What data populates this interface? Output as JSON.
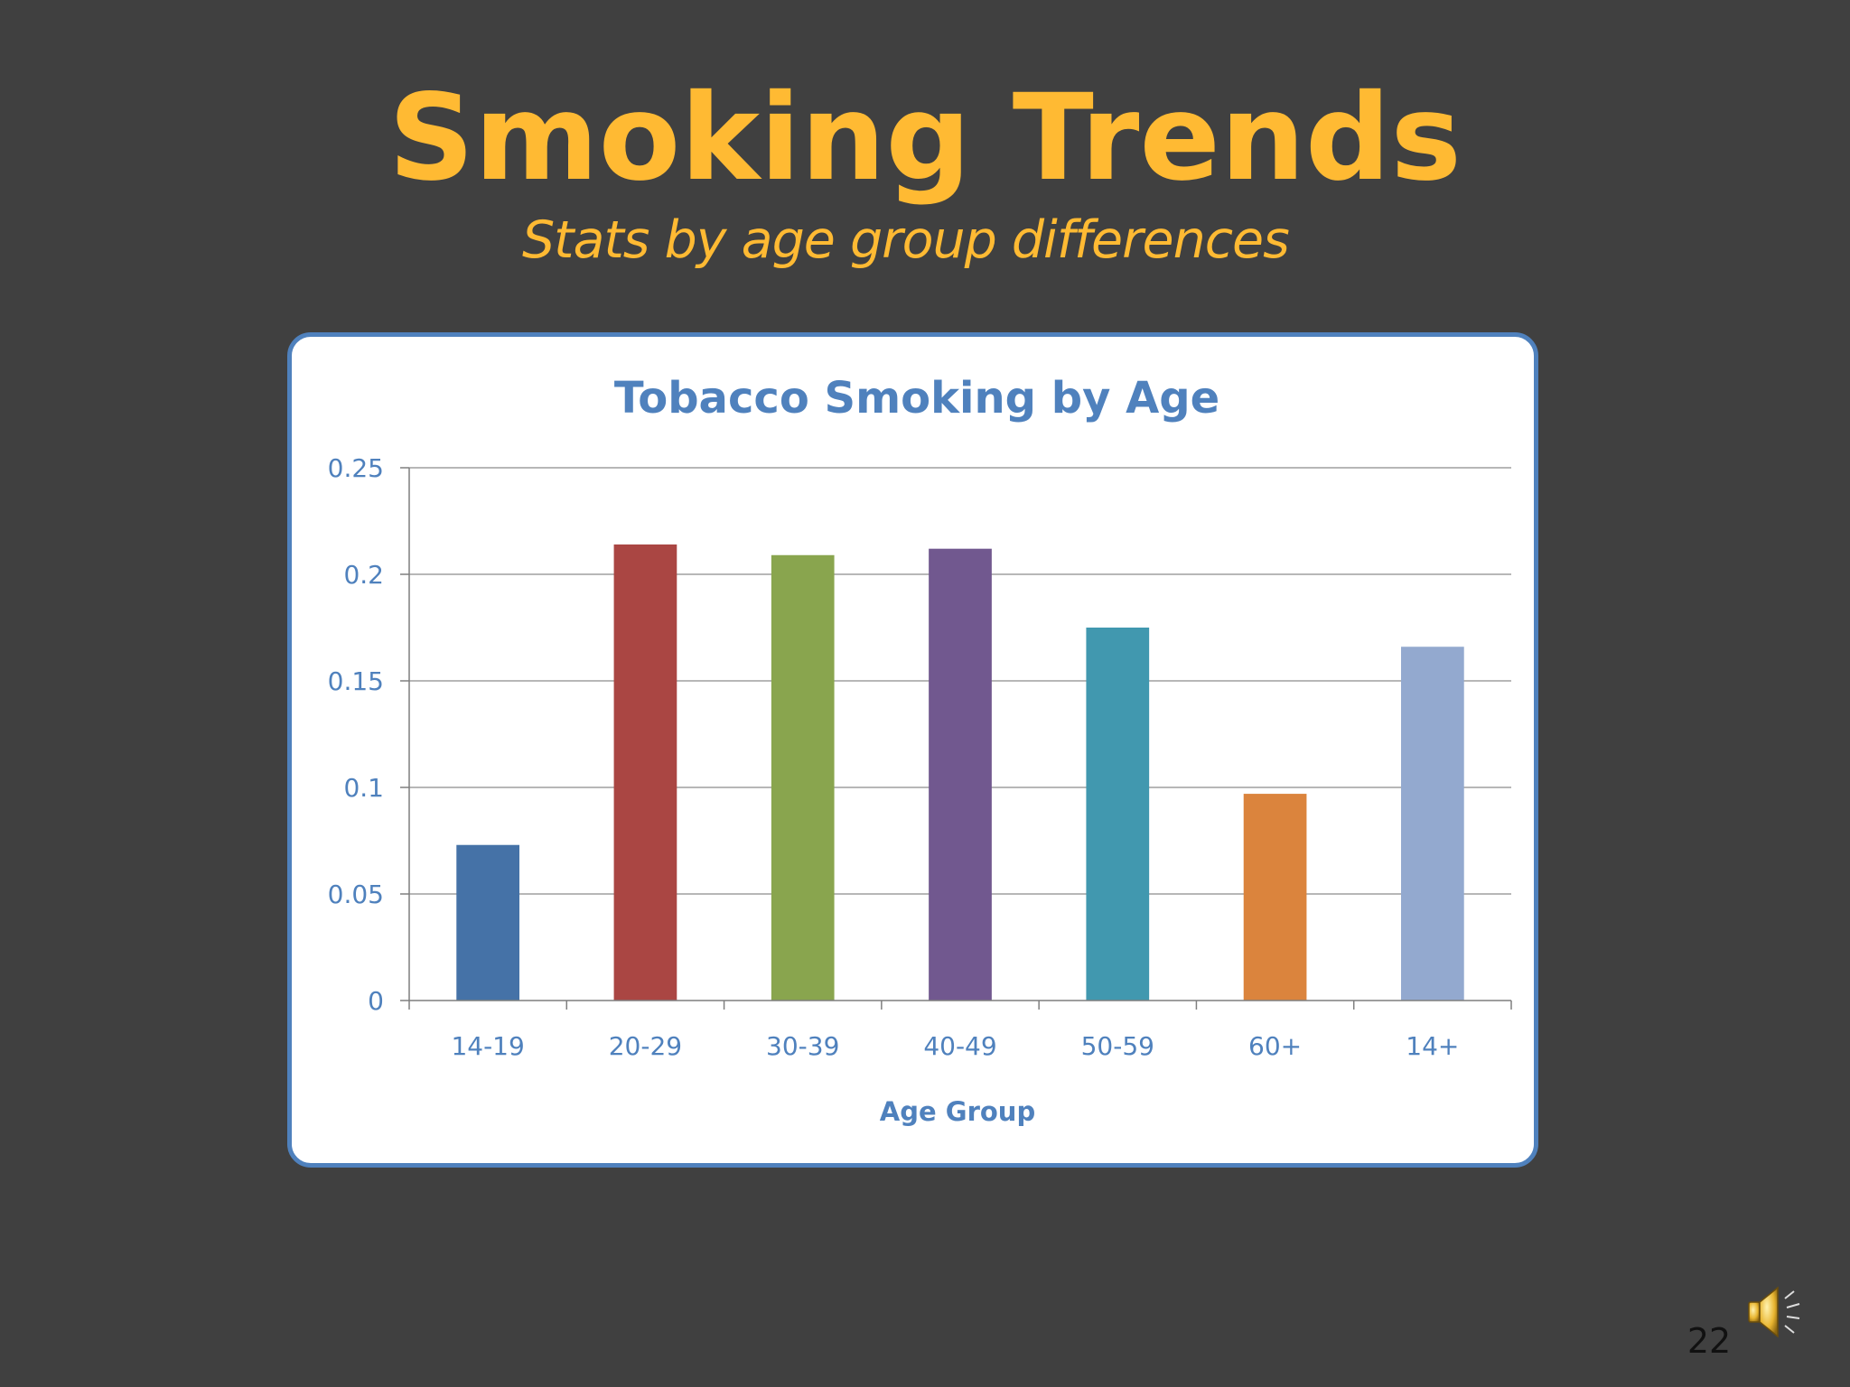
{
  "slide": {
    "title": "Smoking Trends",
    "subtitle": "Stats by age group differences",
    "page_number": "22",
    "icons": [
      "speaker-icon"
    ]
  },
  "colors": {
    "background": "#404040",
    "title": "#FFBA33",
    "chart_title": "#4F81BD",
    "frame_border": "#4F81BD"
  },
  "chart_data": {
    "type": "bar",
    "title": "Tobacco Smoking by Age",
    "xlabel": "Age Group",
    "ylabel": "",
    "categories": [
      "14-19",
      "20-29",
      "30-39",
      "40-49",
      "50-59",
      "60+",
      "14+"
    ],
    "values": [
      0.073,
      0.214,
      0.209,
      0.212,
      0.175,
      0.097,
      0.166
    ],
    "bar_colors": [
      "#4572A7",
      "#AA4643",
      "#89A54E",
      "#71588F",
      "#4198AF",
      "#DB843D",
      "#93A9CF"
    ],
    "ylim": [
      0,
      0.25
    ],
    "yticks": [
      "0",
      "0.05",
      "0.1",
      "0.15",
      "0.2",
      "0.25"
    ],
    "ytick_values": [
      0,
      0.05,
      0.1,
      0.15,
      0.2,
      0.25
    ],
    "grid": true,
    "legend": "none"
  }
}
